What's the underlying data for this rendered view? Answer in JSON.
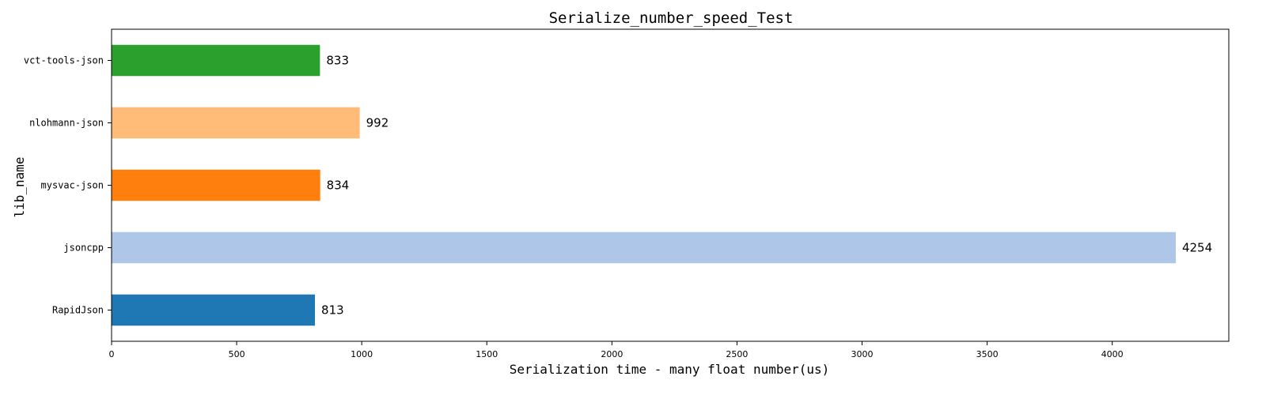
{
  "chart_data": {
    "type": "bar",
    "orientation": "horizontal",
    "title": "Serialize_number_speed_Test",
    "xlabel": "Serialization time - many float number(us)",
    "ylabel": "lib_name",
    "categories": [
      "RapidJson",
      "jsoncpp",
      "mysvac-json",
      "nlohmann-json",
      "vct-tools-json"
    ],
    "values": [
      813,
      4254,
      834,
      992,
      833
    ],
    "data_labels": [
      "813",
      "4254",
      "834",
      "992",
      "833"
    ],
    "colors": [
      "#1f77b4",
      "#aec7e8",
      "#ff7f0e",
      "#ffbb78",
      "#2ca02c"
    ],
    "xlim": [
      0,
      4466
    ],
    "xticks": [
      0,
      500,
      1000,
      1500,
      2000,
      2500,
      3000,
      3500,
      4000
    ],
    "xtick_labels": [
      "0",
      "500",
      "1000",
      "1500",
      "2000",
      "2500",
      "3000",
      "3500",
      "4000"
    ],
    "grid": false,
    "legend": "none"
  }
}
